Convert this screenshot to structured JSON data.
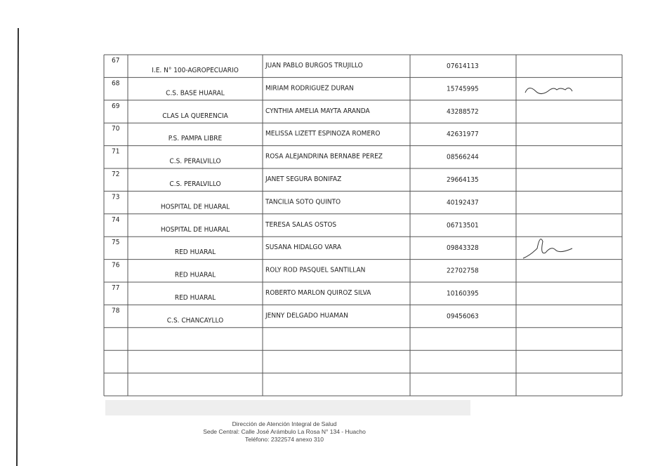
{
  "table": {
    "rows": [
      [
        "67",
        "I.E. N° 100-AGROPECUARIO",
        "JUAN PABLO BURGOS TRUJILLO",
        "07614113"
      ],
      [
        "68",
        "C.S. BASE HUARAL",
        "MIRIAM RODRIGUEZ DURAN",
        "15745995"
      ],
      [
        "69",
        "CLAS LA QUERENCIA",
        "CYNTHIA AMELIA MAYTA ARANDA",
        "43288572"
      ],
      [
        "70",
        "P.S. PAMPA LIBRE",
        "MELISSA LIZETT ESPINOZA ROMERO",
        "42631977"
      ],
      [
        "71",
        "C.S. PERALVILLO",
        "ROSA ALEJANDRINA BERNABE PEREZ",
        "08566244"
      ],
      [
        "72",
        "C.S. PERALVILLO",
        "JANET SEGURA BONIFAZ",
        "29664135"
      ],
      [
        "73",
        "HOSPITAL DE HUARAL",
        "TANCILIA SOTO QUINTO",
        "40192437"
      ],
      [
        "74",
        "HOSPITAL DE HUARAL",
        "TERESA SALAS OSTOS",
        "06713501"
      ],
      [
        "75",
        "RED HUARAL",
        "SUSANA HIDALGO VARA",
        "09843328"
      ],
      [
        "76",
        "RED HUARAL",
        "ROLY ROD PASQUEL SANTILLAN",
        "22702758"
      ],
      [
        "77",
        "RED HUARAL",
        "ROBERTO MARLON QUIROZ SILVA",
        "10160395"
      ],
      [
        "78",
        "C.S. CHANCAYLLO",
        "JENNY DELGADO HUAMAN",
        "09456063"
      ]
    ]
  },
  "footer": {
    "lines": [
      "Dirección de Atención Integral de Salud",
      "Sede Central: Calle José Arámbulo La Rosa N° 134 -  Huacho",
      "Teléfono: 2322574 anexo 310"
    ]
  }
}
